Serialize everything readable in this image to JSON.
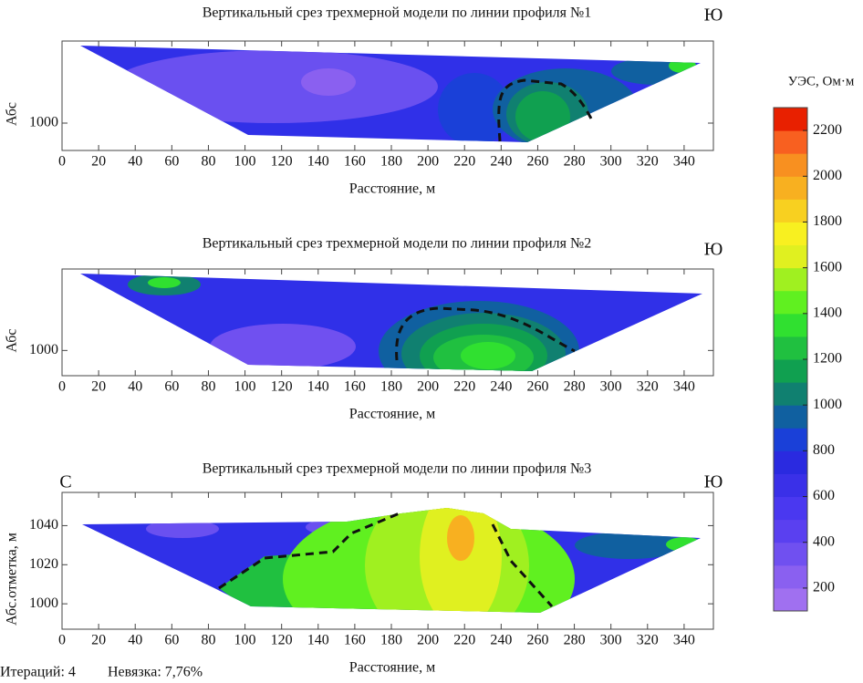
{
  "chart_data": [
    {
      "type": "contour",
      "title": "Вертикальный срез трехмерной модели по линии профиля №1",
      "corner_right": "Ю",
      "x_label": "Расстояние, м",
      "y_label": "Абс",
      "xlim": [
        0,
        356
      ],
      "xticks": [
        0,
        20,
        40,
        60,
        80,
        100,
        120,
        140,
        160,
        180,
        200,
        220,
        240,
        260,
        280,
        300,
        320,
        340
      ],
      "ylim": [
        986,
        1042
      ],
      "yticks": [
        1000
      ]
    },
    {
      "type": "contour",
      "title": "Вертикальный срез трехмерной модели по линии профиля №2",
      "corner_right": "Ю",
      "x_label": "Расстояние, м",
      "y_label": "Абс",
      "xlim": [
        0,
        356
      ],
      "xticks": [
        0,
        20,
        40,
        60,
        80,
        100,
        120,
        140,
        160,
        180,
        200,
        220,
        240,
        260,
        280,
        300,
        320,
        340
      ],
      "ylim": [
        987,
        1042
      ],
      "yticks": [
        1000
      ]
    },
    {
      "type": "contour",
      "title": "Вертикальный срез трехмерной модели по линии профиля №3",
      "corner_left": "С",
      "corner_right": "Ю",
      "x_label": "Расстояние, м",
      "y_label": "Абс.отметка, м",
      "xlim": [
        0,
        356
      ],
      "xticks": [
        0,
        20,
        40,
        60,
        80,
        100,
        120,
        140,
        160,
        180,
        200,
        220,
        240,
        260,
        280,
        300,
        320,
        340
      ],
      "ylim": [
        987,
        1057
      ],
      "yticks": [
        1000,
        1020,
        1040
      ]
    }
  ],
  "colorbar": {
    "title": "УЭС, Ом·м",
    "lim": [
      100,
      2300
    ],
    "ticks": [
      200,
      400,
      600,
      800,
      1000,
      1200,
      1400,
      1600,
      1800,
      2000,
      2200
    ],
    "colors": [
      "#a070f0",
      "#8a60f0",
      "#7050f0",
      "#5a40f0",
      "#4a38f0",
      "#3a30e8",
      "#2a2ae0",
      "#1a40d8",
      "#1060a0",
      "#108070",
      "#10a050",
      "#20c040",
      "#30e030",
      "#60f020",
      "#a0f020",
      "#e0f020",
      "#f8f020",
      "#f8d020",
      "#f8b020",
      "#f89020",
      "#f86020",
      "#e82000"
    ]
  },
  "footer": {
    "iterations": "Итераций: 4",
    "misfit": "Невязка: 7,76%"
  }
}
